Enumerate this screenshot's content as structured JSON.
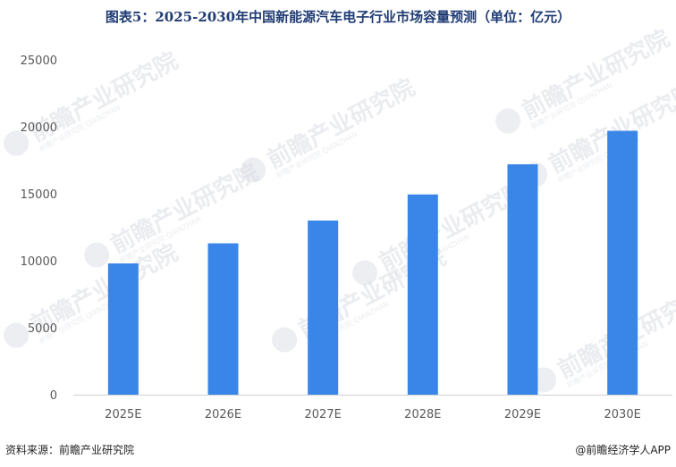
{
  "header": {
    "title": "图表5：2025-2030年中国新能源汽车电子行业市场容量预测（单位：亿元）"
  },
  "chart_data": {
    "type": "bar",
    "categories": [
      "2025E",
      "2026E",
      "2027E",
      "2028E",
      "2029E",
      "2030E"
    ],
    "values": [
      9800,
      11300,
      13000,
      14950,
      17200,
      19700
    ],
    "ylim": [
      0,
      25000
    ],
    "yticks": [
      0,
      5000,
      10000,
      15000,
      20000,
      25000
    ],
    "grid": false,
    "legend": "none",
    "bar_color": "#3a86e8"
  },
  "watermark": {
    "text": "前瞻产业研究院",
    "subtext": "前瞻产业研究院 QIANZHAN"
  },
  "footer": {
    "source": "资料来源：前瞻产业研究院",
    "credit": "@前瞻经济学人APP"
  }
}
